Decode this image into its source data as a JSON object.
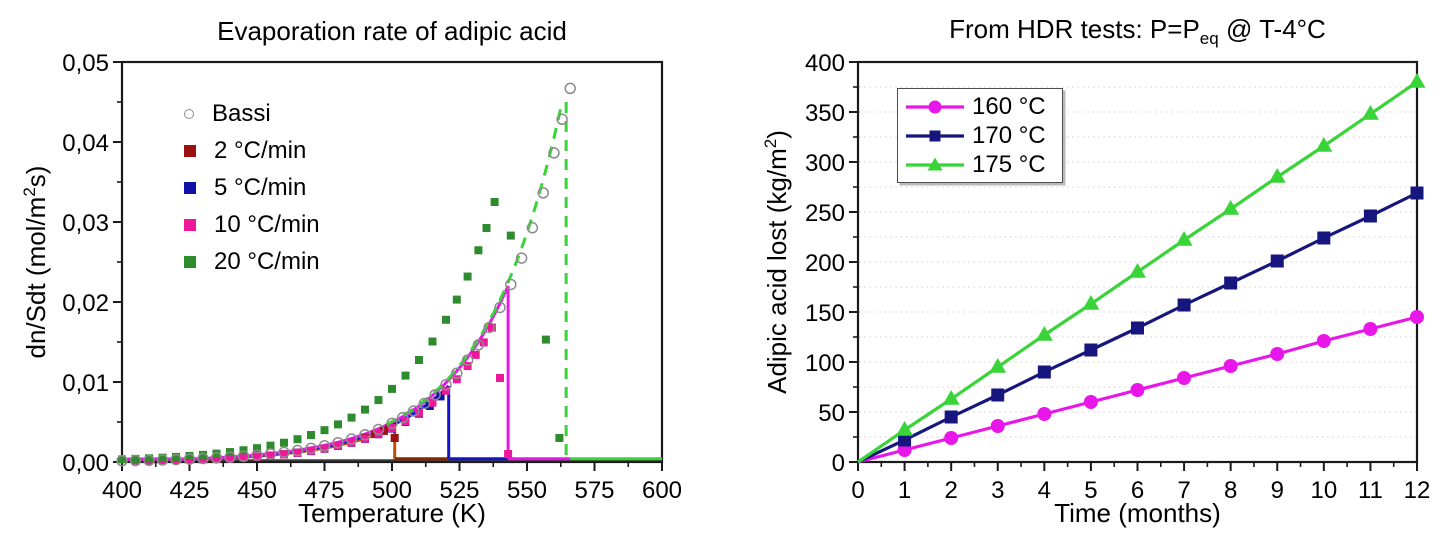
{
  "figure": {
    "background": "#ffffff"
  },
  "chart_data": [
    {
      "id": "left",
      "type": "scatter",
      "title": "Evaporation rate of adipic acid",
      "xlabel": "Temperature (K)",
      "ylabel_text": "dn/Sdt (mol/m2s)",
      "ylabel_parts": {
        "main": "dn/Sdt (mol/m",
        "sup": "2",
        "end": "s)"
      },
      "x_axis": {
        "min": 400,
        "max": 600,
        "major_step": 25,
        "minor_step": 12.5,
        "tick_labels": [
          "400",
          "425",
          "450",
          "475",
          "500",
          "525",
          "550",
          "575",
          "600"
        ]
      },
      "y_axis": {
        "min": 0,
        "max": 0.05,
        "major_step": 0.01,
        "minor_step": 0.005,
        "decimal": "comma",
        "tick_labels": [
          "0,00",
          "0,01",
          "0,02",
          "0,03",
          "0,04",
          "0,05"
        ]
      },
      "grid": {
        "visible": false
      },
      "legend": {
        "position": "upper-left-inside",
        "boxed": false,
        "items": [
          {
            "label": "Bassi",
            "marker": "circle-open",
            "color": "#8c8c8c"
          },
          {
            "label": "2 °C/min",
            "marker": "square",
            "color": "#9b1111"
          },
          {
            "label": "5 °C/min",
            "marker": "square",
            "color": "#1111a8"
          },
          {
            "label": "10 °C/min",
            "marker": "square",
            "color": "#f0189a"
          },
          {
            "label": "20 °C/min",
            "marker": "square",
            "color": "#2e8b2e"
          }
        ]
      },
      "baseline_value": 0.0004,
      "series": [
        {
          "name": "Bassi",
          "marker": "circle-open",
          "color": "#8c8c8c",
          "points": [
            [
              400,
              0.00015
            ],
            [
              405,
              0.00018
            ],
            [
              410,
              0.00021
            ],
            [
              415,
              0.00025
            ],
            [
              420,
              0.0003
            ],
            [
              425,
              0.00036
            ],
            [
              430,
              0.00043
            ],
            [
              435,
              0.00051
            ],
            [
              440,
              0.0006
            ],
            [
              445,
              0.00072
            ],
            [
              450,
              0.00085
            ],
            [
              455,
              0.00101
            ],
            [
              460,
              0.00121
            ],
            [
              465,
              0.00143
            ],
            [
              470,
              0.00171
            ],
            [
              475,
              0.00203
            ],
            [
              480,
              0.00241
            ],
            [
              485,
              0.00287
            ],
            [
              490,
              0.00341
            ],
            [
              495,
              0.00406
            ],
            [
              500,
              0.00483
            ],
            [
              504,
              0.00555
            ],
            [
              508,
              0.00637
            ],
            [
              512,
              0.00732
            ],
            [
              516,
              0.00841
            ],
            [
              520,
              0.00966
            ],
            [
              524,
              0.01109
            ],
            [
              528,
              0.01274
            ],
            [
              532,
              0.01464
            ],
            [
              536,
              0.01682
            ],
            [
              540,
              0.01932
            ],
            [
              544,
              0.02219
            ],
            [
              548,
              0.02549
            ],
            [
              552,
              0.02928
            ],
            [
              556,
              0.03364
            ],
            [
              560,
              0.03864
            ],
            [
              563,
              0.04284
            ],
            [
              566,
              0.0467
            ]
          ]
        },
        {
          "name": "2 °C/min",
          "marker": "square",
          "color": "#9b1111",
          "points": [
            [
              405,
              0.0002
            ],
            [
              410,
              0.00022
            ],
            [
              415,
              0.00025
            ],
            [
              420,
              0.00027
            ],
            [
              425,
              0.0003
            ],
            [
              430,
              0.00032
            ],
            [
              435,
              0.00039
            ],
            [
              440,
              0.00046
            ],
            [
              445,
              0.00055
            ],
            [
              450,
              0.00066
            ],
            [
              455,
              0.0008
            ],
            [
              460,
              0.00097
            ],
            [
              465,
              0.00116
            ],
            [
              470,
              0.0014
            ],
            [
              475,
              0.00168
            ],
            [
              480,
              0.00202
            ],
            [
              485,
              0.00243
            ],
            [
              490,
              0.00301
            ],
            [
              494,
              0.00349
            ],
            [
              497,
              0.00389
            ],
            [
              499,
              0.0042
            ],
            [
              501,
              0.003
            ]
          ]
        },
        {
          "name": "5 °C/min",
          "marker": "square",
          "color": "#1111a8",
          "points": [
            [
              405,
              0.0002
            ],
            [
              410,
              0.00022
            ],
            [
              415,
              0.00025
            ],
            [
              420,
              0.00027
            ],
            [
              425,
              0.0003
            ],
            [
              430,
              0.00032
            ],
            [
              435,
              0.00039
            ],
            [
              440,
              0.00046
            ],
            [
              445,
              0.00056
            ],
            [
              450,
              0.00066
            ],
            [
              455,
              0.0008
            ],
            [
              460,
              0.00096
            ],
            [
              465,
              0.00115
            ],
            [
              470,
              0.00138
            ],
            [
              475,
              0.00166
            ],
            [
              480,
              0.002
            ],
            [
              485,
              0.0024
            ],
            [
              490,
              0.00289
            ],
            [
              495,
              0.00347
            ],
            [
              500,
              0.00418
            ],
            [
              505,
              0.00502
            ],
            [
              510,
              0.00604
            ],
            [
              514,
              0.007
            ],
            [
              518,
              0.0082
            ]
          ]
        },
        {
          "name": "10 °C/min",
          "marker": "square",
          "color": "#f0189a",
          "points": [
            [
              405,
              0.0002
            ],
            [
              410,
              0.00022
            ],
            [
              415,
              0.00025
            ],
            [
              420,
              0.00027
            ],
            [
              425,
              0.0003
            ],
            [
              430,
              0.00032
            ],
            [
              435,
              0.00038
            ],
            [
              440,
              0.00046
            ],
            [
              445,
              0.00055
            ],
            [
              450,
              0.00066
            ],
            [
              455,
              0.00079
            ],
            [
              460,
              0.00096
            ],
            [
              465,
              0.00115
            ],
            [
              470,
              0.00139
            ],
            [
              475,
              0.00167
            ],
            [
              480,
              0.00202
            ],
            [
              485,
              0.00243
            ],
            [
              490,
              0.00292
            ],
            [
              495,
              0.00352
            ],
            [
              500,
              0.00424
            ],
            [
              505,
              0.00511
            ],
            [
              510,
              0.00615
            ],
            [
              515,
              0.00741
            ],
            [
              520,
              0.00892
            ],
            [
              524,
              0.01034
            ],
            [
              528,
              0.01199
            ],
            [
              531,
              0.01339
            ],
            [
              534,
              0.01495
            ],
            [
              537,
              0.0168
            ],
            [
              540,
              0.0105
            ],
            [
              543,
              0.001
            ]
          ]
        },
        {
          "name": "20 °C/min",
          "marker": "square",
          "color": "#2e8b2e",
          "points": [
            [
              400,
              0.00033
            ],
            [
              405,
              0.00039
            ],
            [
              410,
              0.00046
            ],
            [
              415,
              0.00054
            ],
            [
              420,
              0.00064
            ],
            [
              425,
              0.00075
            ],
            [
              430,
              0.00089
            ],
            [
              435,
              0.00105
            ],
            [
              440,
              0.00124
            ],
            [
              445,
              0.00147
            ],
            [
              450,
              0.00173
            ],
            [
              455,
              0.00204
            ],
            [
              460,
              0.00241
            ],
            [
              465,
              0.00285
            ],
            [
              470,
              0.00337
            ],
            [
              475,
              0.00398
            ],
            [
              480,
              0.0047
            ],
            [
              485,
              0.00555
            ],
            [
              490,
              0.00655
            ],
            [
              495,
              0.00774
            ],
            [
              500,
              0.00914
            ],
            [
              505,
              0.0108
            ],
            [
              510,
              0.01275
            ],
            [
              515,
              0.01506
            ],
            [
              520,
              0.01778
            ],
            [
              524,
              0.0203
            ],
            [
              528,
              0.02318
            ],
            [
              532,
              0.02647
            ],
            [
              535,
              0.02925
            ],
            [
              538,
              0.0325
            ],
            [
              544,
              0.0283
            ],
            [
              557,
              0.0153
            ],
            [
              562,
              0.003
            ]
          ]
        }
      ],
      "fits": [
        {
          "name": "fit-2C-per-min",
          "color": "#c05000",
          "style": "solid",
          "tau": 28.8,
          "peak": 0.0043,
          "cutoff_K": 501,
          "curve_start_K": 402,
          "baseline": {
            "from": 501,
            "to": 521,
            "color": "#8b2500"
          }
        },
        {
          "name": "fit-5C-per-min",
          "color": "#1414c8",
          "style": "solid",
          "tau": 28.8,
          "peak": 0.0095,
          "cutoff_K": 521,
          "curve_start_K": 402,
          "baseline": {
            "from": 521,
            "to": 543,
            "color": "#1414c8"
          }
        },
        {
          "name": "fit-10C-per-min",
          "color": "#e816e8",
          "style": "solid",
          "tau": 28.8,
          "peak": 0.022,
          "cutoff_K": 543,
          "curve_start_K": 402,
          "baseline": {
            "from": 543,
            "to": 566,
            "color": "#e816e8"
          }
        },
        {
          "name": "fit-20C-per-min",
          "color": "#38d438",
          "style": "dashed",
          "tau": 28.8,
          "peak": 0.045,
          "cutoff_K": 563,
          "drop_K": 564.5,
          "curve_start_K": 498,
          "baseline": {
            "from": 566,
            "to": 600,
            "color": "#38d438"
          }
        }
      ]
    },
    {
      "id": "right",
      "type": "line",
      "title_text": "From HDR tests: P=Peq @ T-4°C",
      "title_parts": {
        "main": "From HDR tests: P=P",
        "sub": "eq",
        "end": " @ T-4°C"
      },
      "xlabel": "Time (months)",
      "ylabel_text": "Adipic acid lost (kg/m2)",
      "ylabel_parts": {
        "main": "Adipic acid lost (kg/m",
        "sup": "2",
        "end": ")"
      },
      "x_axis": {
        "min": 0,
        "max": 12,
        "major_step": 1,
        "minor_step": 0.5,
        "tick_labels": [
          "0",
          "1",
          "2",
          "3",
          "4",
          "5",
          "6",
          "7",
          "8",
          "9",
          "10",
          "11",
          "12"
        ]
      },
      "y_axis": {
        "min": 0,
        "max": 400,
        "major_step": 50,
        "minor_step": 25,
        "tick_labels": [
          "0",
          "50",
          "100",
          "150",
          "200",
          "250",
          "300",
          "350",
          "400"
        ]
      },
      "grid": {
        "visible": true,
        "orientation": "horizontal",
        "step": 25,
        "style": "dotted",
        "color": "#e0d8d8"
      },
      "legend": {
        "position": "upper-left-inside",
        "boxed": true,
        "items": [
          {
            "label": "160 °C",
            "marker": "circle",
            "color": "#e816e8"
          },
          {
            "label": "170 °C",
            "marker": "square",
            "color": "#16167e"
          },
          {
            "label": "175 °C",
            "marker": "triangle",
            "color": "#38d438"
          }
        ]
      },
      "x_months": [
        0,
        1,
        2,
        3,
        4,
        5,
        6,
        7,
        8,
        9,
        10,
        11,
        12
      ],
      "series": [
        {
          "name": "160 °C",
          "marker": "circle",
          "color": "#e816e8",
          "values": [
            0,
            12,
            24,
            36,
            48,
            60,
            72,
            84,
            96,
            108,
            121,
            133,
            145
          ]
        },
        {
          "name": "170 °C",
          "marker": "square",
          "color": "#16167e",
          "values": [
            0,
            22,
            45,
            67,
            90,
            112,
            134,
            157,
            179,
            201,
            224,
            246,
            269
          ]
        },
        {
          "name": "175 °C",
          "marker": "triangle",
          "color": "#38d438",
          "values": [
            0,
            32,
            63,
            95,
            127,
            158,
            190,
            222,
            253,
            285,
            316,
            348,
            380
          ]
        }
      ]
    }
  ]
}
